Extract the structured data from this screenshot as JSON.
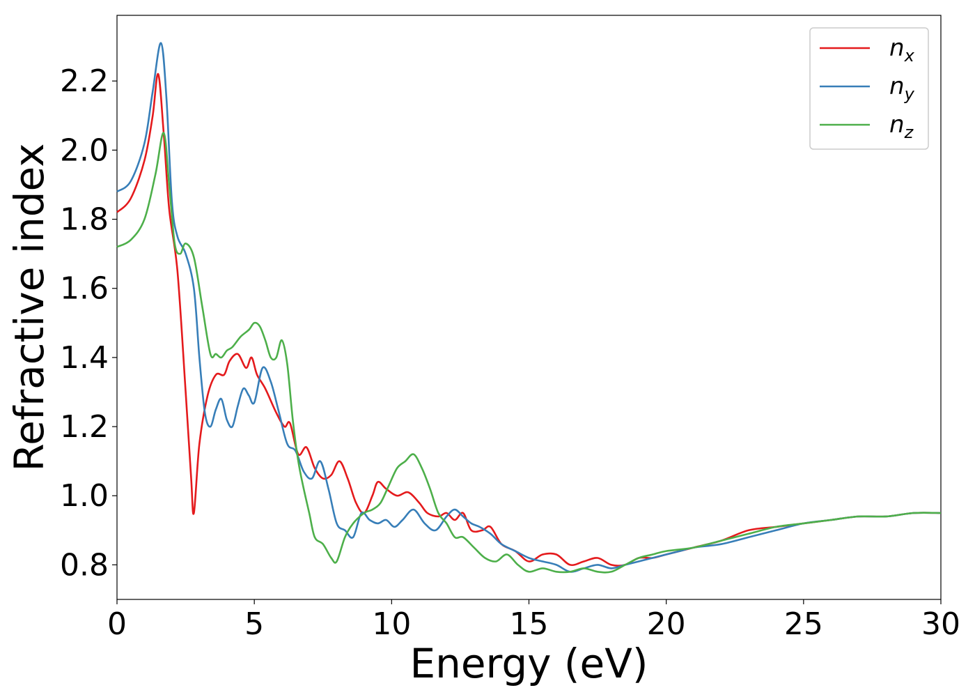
{
  "chart_data": {
    "type": "line",
    "xlabel": "Energy (eV)",
    "ylabel": "Refractive index",
    "xlim": [
      0,
      30
    ],
    "ylim": [
      0.7,
      2.39
    ],
    "xticks": [
      0,
      5,
      10,
      15,
      20,
      25,
      30
    ],
    "xtick_labels": [
      "0",
      "5",
      "10",
      "15",
      "20",
      "25",
      "30"
    ],
    "yticks": [
      0.8,
      1.0,
      1.2,
      1.4,
      1.6,
      1.8,
      2.0,
      2.2
    ],
    "ytick_labels": [
      "0.8",
      "1.0",
      "1.2",
      "1.4",
      "1.6",
      "1.8",
      "2.0",
      "2.2"
    ],
    "grid": false,
    "legend_position": "top-right",
    "series": [
      {
        "name": "n",
        "subscript": "x",
        "color": "#e41a1c",
        "x": [
          0,
          0.5,
          1.0,
          1.3,
          1.5,
          1.7,
          1.9,
          2.2,
          2.5,
          2.7,
          2.8,
          3.0,
          3.3,
          3.6,
          3.9,
          4.1,
          4.4,
          4.7,
          4.9,
          5.1,
          5.4,
          5.8,
          6.1,
          6.3,
          6.6,
          6.9,
          7.2,
          7.5,
          7.8,
          8.1,
          8.4,
          8.7,
          9.0,
          9.3,
          9.5,
          9.8,
          10.2,
          10.6,
          11.0,
          11.3,
          11.7,
          12.0,
          12.3,
          12.6,
          12.9,
          13.3,
          13.6,
          14.0,
          14.5,
          15.0,
          15.5,
          16.0,
          16.5,
          17.0,
          17.5,
          18.0,
          18.5,
          19.0,
          19.5,
          20.0,
          21.0,
          22.0,
          23.0,
          24.0,
          25.0,
          26.0,
          27.0,
          28.0,
          29.0,
          30.0
        ],
        "values": [
          1.82,
          1.86,
          1.97,
          2.1,
          2.22,
          2.05,
          1.83,
          1.65,
          1.3,
          1.05,
          0.95,
          1.15,
          1.29,
          1.35,
          1.35,
          1.39,
          1.41,
          1.37,
          1.4,
          1.35,
          1.31,
          1.24,
          1.2,
          1.21,
          1.12,
          1.14,
          1.08,
          1.05,
          1.06,
          1.1,
          1.05,
          0.98,
          0.95,
          1.0,
          1.04,
          1.02,
          1.0,
          1.01,
          0.98,
          0.95,
          0.94,
          0.95,
          0.93,
          0.95,
          0.9,
          0.9,
          0.91,
          0.86,
          0.84,
          0.81,
          0.83,
          0.83,
          0.8,
          0.81,
          0.82,
          0.8,
          0.8,
          0.82,
          0.82,
          0.83,
          0.85,
          0.87,
          0.9,
          0.91,
          0.92,
          0.93,
          0.94,
          0.94,
          0.95,
          0.95
        ]
      },
      {
        "name": "n",
        "subscript": "y",
        "color": "#377eb8",
        "x": [
          0,
          0.5,
          1.0,
          1.3,
          1.6,
          1.8,
          2.0,
          2.2,
          2.5,
          2.8,
          3.0,
          3.2,
          3.4,
          3.6,
          3.8,
          4.0,
          4.2,
          4.4,
          4.6,
          4.8,
          5.0,
          5.3,
          5.6,
          5.9,
          6.2,
          6.5,
          6.8,
          7.1,
          7.4,
          7.7,
          8.0,
          8.3,
          8.6,
          8.9,
          9.2,
          9.5,
          9.8,
          10.1,
          10.4,
          10.8,
          11.2,
          11.6,
          12.0,
          12.3,
          12.6,
          12.9,
          13.2,
          13.6,
          14.0,
          14.5,
          15.0,
          15.5,
          16.0,
          16.5,
          17.0,
          17.5,
          18.0,
          18.5,
          19.0,
          19.5,
          20.0,
          20.5,
          21.0,
          22.0,
          23.0,
          24.0,
          25.0,
          26.0,
          27.0,
          28.0,
          29.0,
          30.0
        ],
        "values": [
          1.88,
          1.91,
          2.02,
          2.17,
          2.31,
          2.15,
          1.85,
          1.75,
          1.7,
          1.6,
          1.4,
          1.24,
          1.2,
          1.25,
          1.28,
          1.22,
          1.2,
          1.26,
          1.31,
          1.29,
          1.27,
          1.37,
          1.33,
          1.24,
          1.15,
          1.13,
          1.07,
          1.05,
          1.1,
          1.02,
          0.92,
          0.9,
          0.88,
          0.95,
          0.93,
          0.92,
          0.93,
          0.91,
          0.93,
          0.96,
          0.92,
          0.9,
          0.94,
          0.96,
          0.94,
          0.92,
          0.91,
          0.89,
          0.86,
          0.84,
          0.82,
          0.81,
          0.8,
          0.78,
          0.79,
          0.8,
          0.79,
          0.8,
          0.81,
          0.82,
          0.83,
          0.84,
          0.85,
          0.86,
          0.88,
          0.9,
          0.92,
          0.93,
          0.94,
          0.94,
          0.95,
          0.95
        ]
      },
      {
        "name": "n",
        "subscript": "z",
        "color": "#4daf4a",
        "x": [
          0,
          0.5,
          1.0,
          1.4,
          1.7,
          1.9,
          2.1,
          2.3,
          2.5,
          2.8,
          3.1,
          3.4,
          3.6,
          3.8,
          4.0,
          4.2,
          4.5,
          4.8,
          5.0,
          5.2,
          5.4,
          5.6,
          5.8,
          6.0,
          6.2,
          6.4,
          6.6,
          6.8,
          7.0,
          7.2,
          7.5,
          7.8,
          8.0,
          8.3,
          8.6,
          9.0,
          9.3,
          9.6,
          9.9,
          10.2,
          10.5,
          10.8,
          11.1,
          11.4,
          11.7,
          12.0,
          12.3,
          12.6,
          13.0,
          13.4,
          13.8,
          14.2,
          14.6,
          15.0,
          15.5,
          16.0,
          16.5,
          17.0,
          17.5,
          18.0,
          18.5,
          19.0,
          19.5,
          20.0,
          21.0,
          22.0,
          23.0,
          24.0,
          25.0,
          26.0,
          27.0,
          28.0,
          29.0,
          30.0
        ],
        "values": [
          1.72,
          1.74,
          1.8,
          1.93,
          2.05,
          1.9,
          1.73,
          1.7,
          1.73,
          1.69,
          1.55,
          1.41,
          1.41,
          1.4,
          1.42,
          1.43,
          1.46,
          1.48,
          1.5,
          1.49,
          1.45,
          1.4,
          1.4,
          1.45,
          1.38,
          1.22,
          1.1,
          1.02,
          0.95,
          0.88,
          0.86,
          0.82,
          0.81,
          0.88,
          0.92,
          0.95,
          0.96,
          0.98,
          1.03,
          1.08,
          1.1,
          1.12,
          1.08,
          1.02,
          0.95,
          0.92,
          0.88,
          0.88,
          0.85,
          0.82,
          0.81,
          0.83,
          0.8,
          0.78,
          0.79,
          0.78,
          0.78,
          0.79,
          0.78,
          0.78,
          0.8,
          0.82,
          0.83,
          0.84,
          0.85,
          0.87,
          0.89,
          0.91,
          0.92,
          0.93,
          0.94,
          0.94,
          0.95,
          0.95
        ]
      }
    ]
  }
}
